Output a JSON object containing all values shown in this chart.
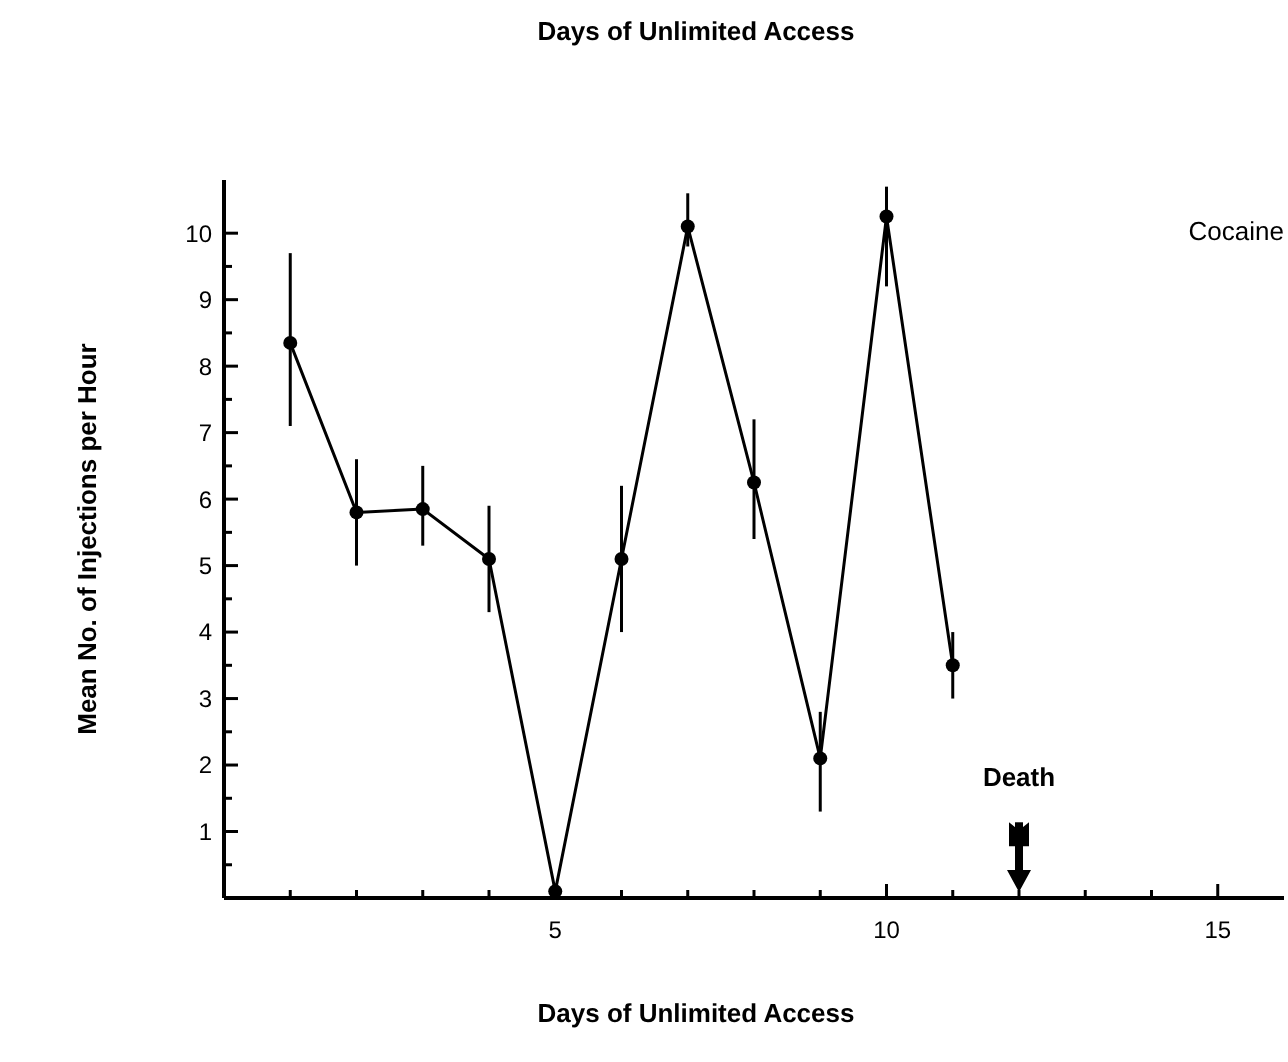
{
  "chart_data": {
    "type": "line",
    "title": "Days of Unlimited Access",
    "xlabel": "Days of Unlimited Access",
    "ylabel": "Mean No. of Injections per Hour",
    "x": [
      1,
      2,
      3,
      4,
      5,
      6,
      7,
      8,
      9,
      10,
      11
    ],
    "annotations": [
      "Cocaine"
    ],
    "series": [
      {
        "color": "#000000",
        "values": [
          8.35,
          5.8,
          5.85,
          5.1,
          0.1,
          5.1,
          10.1,
          6.25,
          2.1,
          10.25,
          3.5
        ],
        "errors": [
          [
            7.1,
            9.7
          ],
          [
            5.0,
            6.6
          ],
          [
            5.3,
            6.5
          ],
          [
            4.3,
            5.9
          ],
          null,
          [
            4.0,
            6.2
          ],
          [
            9.8,
            10.6
          ],
          [
            5.4,
            7.2
          ],
          [
            1.3,
            2.8
          ],
          [
            9.2,
            10.7
          ],
          [
            3.0,
            4.0
          ]
        ]
      }
    ],
    "xlim": [
      0,
      16
    ],
    "ylim": [
      0,
      10.8
    ],
    "xticks": [
      {
        "value": 1,
        "label": null
      },
      {
        "value": 2,
        "label": null
      },
      {
        "value": 3,
        "label": null
      },
      {
        "value": 4,
        "label": null
      },
      5,
      {
        "value": 6,
        "label": null
      },
      {
        "value": 7,
        "label": null
      },
      {
        "value": 8,
        "label": null
      },
      {
        "value": 9,
        "label": null
      },
      10,
      {
        "value": 11,
        "label": null
      },
      {
        "value": 12,
        "label": null
      },
      {
        "value": 13,
        "label": null
      },
      {
        "value": 14,
        "label": null
      },
      15
    ],
    "yticks": [
      {
        "value": 0.5,
        "label": null
      },
      1,
      {
        "value": 1.5,
        "label": null
      },
      2,
      {
        "value": 2.5,
        "label": null
      },
      3,
      {
        "value": 3.5,
        "label": null
      },
      4,
      {
        "value": 4.5,
        "label": null
      },
      5,
      {
        "value": 5.5,
        "label": null
      },
      6,
      {
        "value": 6.5,
        "label": null
      },
      7,
      {
        "value": 7.5,
        "label": null
      },
      8,
      {
        "value": 8.5,
        "label": null
      },
      9,
      {
        "value": 9.5,
        "label": null
      },
      10
    ],
    "ref_lines": [
      {
        "axis": "x",
        "value": 12,
        "label": "Death"
      }
    ],
    "marker": "circle",
    "grid": false
  }
}
